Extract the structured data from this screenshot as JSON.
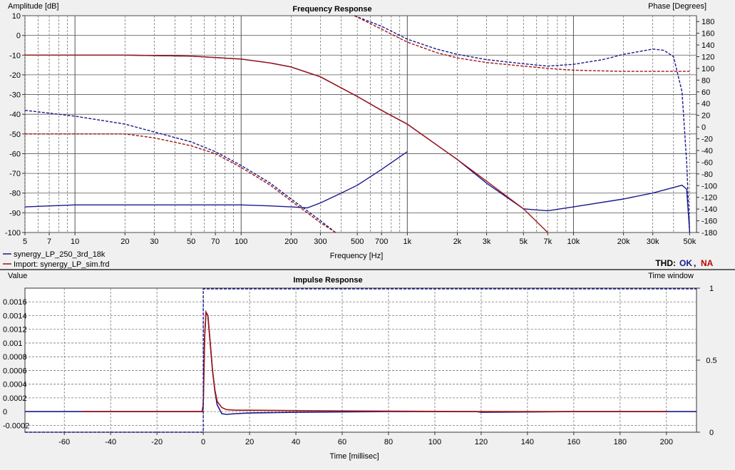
{
  "colors": {
    "measured": "#1a1a8c",
    "simulated": "#a01414",
    "ok": "#1a1a8c",
    "na": "#c00000",
    "background": "#f0f0f0",
    "plot_background": "#ffffff"
  },
  "chart_data": [
    {
      "type": "line",
      "title": "Frequency Response",
      "xlabel": "Frequency [Hz]",
      "ylabel": "Amplitude [dB]",
      "y2label": "Phase [Degrees]",
      "xscale": "log",
      "xlim": [
        5,
        55000
      ],
      "ylim": [
        -100,
        10
      ],
      "y2lim": [
        -180,
        190
      ],
      "grid": true,
      "legend_position": "bottom-left",
      "x_tick_labels": [
        {
          "v": 5,
          "t": "5"
        },
        {
          "v": 7,
          "t": "7"
        },
        {
          "v": 10,
          "t": "10"
        },
        {
          "v": 20,
          "t": "20"
        },
        {
          "v": 30,
          "t": "30"
        },
        {
          "v": 50,
          "t": "50"
        },
        {
          "v": 70,
          "t": "70"
        },
        {
          "v": 100,
          "t": "100"
        },
        {
          "v": 200,
          "t": "200"
        },
        {
          "v": 300,
          "t": "300"
        },
        {
          "v": 500,
          "t": "500"
        },
        {
          "v": 700,
          "t": "700"
        },
        {
          "v": 1000,
          "t": "1k"
        },
        {
          "v": 2000,
          "t": "2k"
        },
        {
          "v": 3000,
          "t": "3k"
        },
        {
          "v": 5000,
          "t": "5k"
        },
        {
          "v": 7000,
          "t": "7k"
        },
        {
          "v": 10000,
          "t": "10k"
        },
        {
          "v": 20000,
          "t": "20k"
        },
        {
          "v": 30000,
          "t": "30k"
        },
        {
          "v": 50000,
          "t": "50k"
        }
      ],
      "y_ticks": [
        10,
        0,
        -10,
        -20,
        -30,
        -40,
        -50,
        -60,
        -70,
        -80,
        -90,
        -100
      ],
      "y2_ticks": [
        180,
        160,
        140,
        120,
        100,
        80,
        60,
        40,
        20,
        0,
        -20,
        -40,
        -60,
        -80,
        -100,
        -120,
        -140,
        -160,
        -180
      ],
      "series": [
        {
          "name": "synergy_LP_250_3rd_18k",
          "axis": "amplitude",
          "style": "solid",
          "color": "#1a1a8c",
          "x": [
            5,
            20,
            50,
            100,
            150,
            200,
            300,
            500,
            700,
            1000,
            2000,
            3000,
            5000,
            7000,
            10000,
            20000,
            30000,
            45000,
            48000,
            50000
          ],
          "y": [
            -10,
            -10,
            -10.5,
            -12,
            -14,
            -16,
            -21,
            -31,
            -38,
            -45,
            -63,
            -75,
            -88,
            -89,
            -87,
            -83,
            -80,
            -76,
            -78,
            -100
          ]
        },
        {
          "name": "synergy_LP_250_3rd_18k",
          "axis": "amplitude",
          "style": "dashed",
          "color": "#1a1a8c",
          "x": [
            5,
            10,
            20,
            30,
            50,
            70,
            100,
            150,
            200,
            250,
            300,
            370
          ],
          "y": [
            -38,
            -41,
            -45,
            -49,
            -54,
            -59,
            -66,
            -75,
            -83,
            -89,
            -94,
            -100
          ]
        },
        {
          "name": "synergy_LP_250_3rd_18k",
          "axis": "amplitude",
          "style": "solid",
          "color": "#1a1a8c",
          "x": [
            5,
            10,
            20,
            50,
            100,
            150,
            200,
            250,
            300,
            400,
            500,
            700,
            1000
          ],
          "y": [
            -87,
            -86,
            -86,
            -86,
            -86,
            -86.5,
            -87,
            -87.5,
            -85,
            -80,
            -76,
            -68,
            -59
          ]
        },
        {
          "name": "synergy_LP_250_3rd_18k",
          "axis": "phase",
          "style": "dashed",
          "color": "#1a1a8c",
          "x": [
            480,
            700,
            1000,
            1500,
            2000,
            3000,
            5000,
            7000,
            10000,
            15000,
            20000,
            30000,
            35000,
            40000,
            45000,
            48000,
            50000
          ],
          "y": [
            190,
            172,
            150,
            133,
            124,
            115,
            108,
            104,
            107,
            115,
            124,
            133,
            131,
            120,
            60,
            -60,
            -180
          ]
        },
        {
          "name": "Import: synergy_LP_sim.frd",
          "axis": "amplitude",
          "style": "solid",
          "color": "#a01414",
          "x": [
            5,
            20,
            50,
            100,
            150,
            200,
            300,
            500,
            700,
            1000,
            2000,
            3000,
            5000,
            7000
          ],
          "y": [
            -10,
            -10,
            -10.5,
            -12,
            -14,
            -16,
            -21,
            -31,
            -38,
            -45,
            -63,
            -74,
            -88,
            -100
          ]
        },
        {
          "name": "Import: synergy_LP_sim.frd",
          "axis": "amplitude",
          "style": "dashed",
          "color": "#a01414",
          "x": [
            5,
            10,
            20,
            30,
            50,
            70,
            100,
            150,
            200,
            250,
            300,
            370
          ],
          "y": [
            -50,
            -50,
            -50,
            -52,
            -56,
            -60,
            -67,
            -76,
            -84,
            -90,
            -95,
            -100
          ]
        },
        {
          "name": "Import: synergy_LP_sim.frd",
          "axis": "phase",
          "style": "dashed",
          "color": "#a01414",
          "x": [
            480,
            700,
            1000,
            1500,
            2000,
            3000,
            5000,
            7000,
            10000,
            20000,
            30000,
            50000
          ],
          "y": [
            190,
            167,
            145,
            127,
            118,
            110,
            104,
            100,
            97,
            95,
            95,
            95
          ]
        }
      ]
    },
    {
      "type": "line",
      "title": "Impulse Response",
      "xlabel": "Time [millisec]",
      "ylabel": "Value",
      "y2label": "Time window",
      "xlim": [
        -77,
        213
      ],
      "ylim": [
        -0.0003,
        0.0018
      ],
      "y2lim": [
        0,
        1
      ],
      "grid": true,
      "x_ticks": [
        -60,
        -40,
        -20,
        0,
        20,
        40,
        60,
        80,
        100,
        120,
        140,
        160,
        180,
        200
      ],
      "y_tick_labels": [
        {
          "v": 0.0016,
          "t": "0.0016"
        },
        {
          "v": 0.0014,
          "t": "0.0014"
        },
        {
          "v": 0.0012,
          "t": "0.0012"
        },
        {
          "v": 0.001,
          "t": "0.001"
        },
        {
          "v": 0.0008,
          "t": "0.0008"
        },
        {
          "v": 0.0006,
          "t": "0.0006"
        },
        {
          "v": 0.0004,
          "t": "0.0004"
        },
        {
          "v": 0.0002,
          "t": "0.0002"
        },
        {
          "v": 0,
          "t": "0"
        },
        {
          "v": -0.0002,
          "t": "-0.0002"
        }
      ],
      "y2_tick_labels": [
        {
          "v": 1,
          "t": "1"
        },
        {
          "v": 0.5,
          "t": "0.5"
        },
        {
          "v": 0,
          "t": "0"
        }
      ],
      "series": [
        {
          "name": "synergy_LP_250_3rd_18k",
          "style": "solid",
          "color": "#1a1a8c",
          "x": [
            -77,
            -0.5,
            0,
            0.6,
            1.2,
            2,
            3,
            4,
            5,
            6,
            8,
            10,
            14,
            20,
            40,
            80,
            118,
            120,
            160,
            200,
            213
          ],
          "y": [
            0,
            0,
            0.0001,
            0.0011,
            0.00145,
            0.0014,
            0.001,
            0.0006,
            0.0003,
            0.0001,
            -3e-05,
            -4e-05,
            -3e-05,
            -2e-05,
            -1e-05,
            0,
            0,
            -1e-05,
            0,
            0,
            0
          ]
        },
        {
          "name": "Import: synergy_LP_sim.frd",
          "style": "solid",
          "color": "#a01414",
          "x": [
            -52,
            -0.5,
            0,
            0.6,
            1.2,
            2,
            3,
            4,
            5,
            6,
            8,
            10,
            14,
            20,
            60,
            120,
            200
          ],
          "y": [
            0,
            0,
            0.0001,
            0.0011,
            0.00145,
            0.0014,
            0.001,
            0.0006,
            0.00032,
            0.00015,
            6e-05,
            3e-05,
            2e-05,
            2e-05,
            1e-05,
            0,
            0
          ]
        },
        {
          "name": "Time window",
          "axis": "right",
          "style": "dashed",
          "color": "#1a1a8c",
          "x": [
            -77,
            0,
            213
          ],
          "y": [
            0,
            1,
            1
          ]
        }
      ]
    }
  ],
  "legend": [
    {
      "label": "synergy_LP_250_3rd_18k",
      "color": "#1a1a8c"
    },
    {
      "label": "Import: synergy_LP_sim.frd",
      "color": "#a01414"
    }
  ],
  "thd": {
    "label": "THD:",
    "ok": "OK",
    "sep": ",",
    "na": "NA"
  }
}
